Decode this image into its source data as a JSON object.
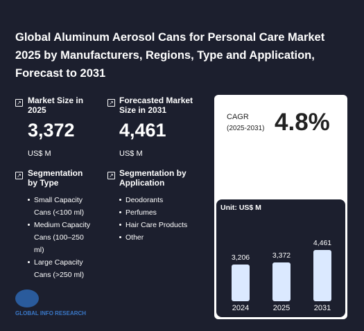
{
  "header": {
    "title": "Global Aluminum Aerosol Cans for Personal Care Market 2025 by Manufacturers, Regions, Type and Application, Forecast to 2031"
  },
  "stats": [
    {
      "label": "Market Size in 2025",
      "value": "3,372",
      "unit": "US$ M"
    },
    {
      "label": "Forecasted Market Size in 2031",
      "value": "4,461",
      "unit": "US$ M"
    }
  ],
  "segments": [
    {
      "title": "Segmentation by Type",
      "items": [
        "Small Capacity Cans (<100 ml)",
        "Medium Capacity Cans (100–250 ml)",
        "Large Capacity Cans (>250 ml)"
      ]
    },
    {
      "title": "Segmentation by Application",
      "items": [
        "Deodorants",
        "Perfumes",
        "Hair Care Products",
        "Other"
      ]
    }
  ],
  "cagr": {
    "label": "CAGR",
    "period": "(2025-2031)",
    "value": "4.8%"
  },
  "logo": "GLOBAL INFO RESEARCH",
  "chart_data": {
    "type": "bar",
    "unit_label": "Unit: US$ M",
    "categories": [
      "2024",
      "2025",
      "2031"
    ],
    "values": [
      3206,
      3372,
      4461
    ],
    "value_labels": [
      "3,206",
      "3,372",
      "4,461"
    ],
    "color": "#dbe9ff"
  }
}
